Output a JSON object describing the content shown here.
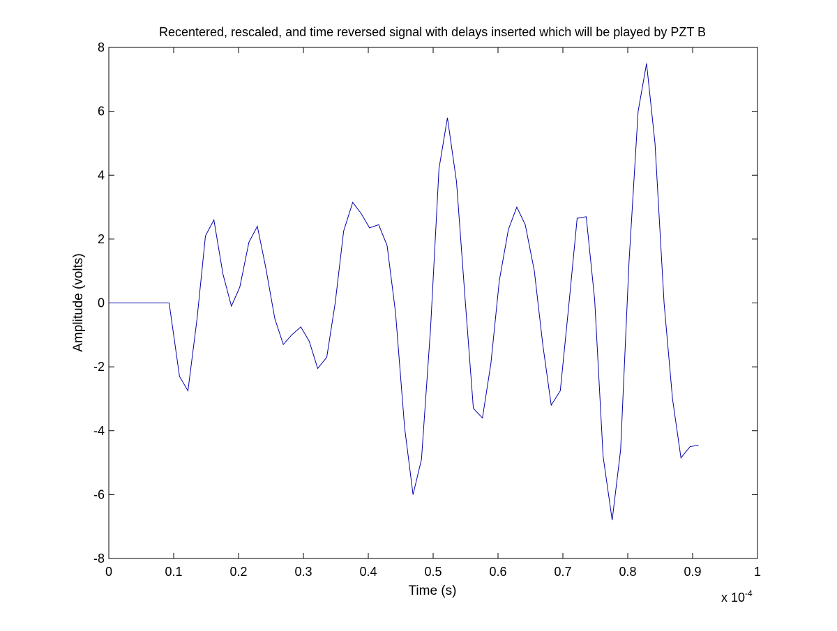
{
  "chart_data": {
    "type": "line",
    "title": "Recentered, rescaled, and time reversed signal with delays inserted which will be played by PZT B",
    "xlabel": "Time (s)",
    "ylabel": "Amplitude (volts)",
    "x_multiplier_base": "x 10",
    "x_multiplier_exponent": "-4",
    "xlim": [
      0,
      1
    ],
    "ylim": [
      -8,
      8
    ],
    "grid": false,
    "xticks": [
      0,
      0.1,
      0.2,
      0.3,
      0.4,
      0.5,
      0.6,
      0.7,
      0.8,
      0.9,
      1
    ],
    "xtick_labels": [
      "0",
      "0.1",
      "0.2",
      "0.3",
      "0.4",
      "0.5",
      "0.6",
      "0.7",
      "0.8",
      "0.9",
      "1"
    ],
    "yticks": [
      -8,
      -6,
      -4,
      -2,
      0,
      2,
      4,
      6,
      8
    ],
    "ytick_labels": [
      "-8",
      "-6",
      "-4",
      "-2",
      "0",
      "2",
      "4",
      "6",
      "8"
    ],
    "series": [
      {
        "color": "#0000aa",
        "x": [
          0,
          0.093,
          0.109,
          0.122,
          0.136,
          0.149,
          0.162,
          0.176,
          0.189,
          0.202,
          0.216,
          0.229,
          0.242,
          0.256,
          0.269,
          0.282,
          0.296,
          0.309,
          0.322,
          0.336,
          0.349,
          0.362,
          0.376,
          0.389,
          0.402,
          0.416,
          0.429,
          0.442,
          0.456,
          0.469,
          0.482,
          0.496,
          0.509,
          0.522,
          0.536,
          0.549,
          0.562,
          0.576,
          0.589,
          0.602,
          0.616,
          0.629,
          0.642,
          0.656,
          0.669,
          0.682,
          0.696,
          0.709,
          0.722,
          0.736,
          0.749,
          0.762,
          0.776,
          0.789,
          0.802,
          0.816,
          0.829,
          0.842,
          0.856,
          0.869,
          0.882,
          0.896,
          0.909
        ],
        "y": [
          0,
          0,
          -2.3,
          -2.75,
          -0.5,
          2.1,
          2.6,
          0.9,
          -0.1,
          0.5,
          1.9,
          2.4,
          1.1,
          -0.5,
          -1.3,
          -1.0,
          -0.75,
          -1.2,
          -2.05,
          -1.7,
          0.0,
          2.25,
          3.15,
          2.8,
          2.35,
          2.45,
          1.8,
          -0.3,
          -3.9,
          -6.0,
          -4.9,
          -0.8,
          4.2,
          5.8,
          3.8,
          0.2,
          -3.3,
          -3.6,
          -1.9,
          0.7,
          2.3,
          3.0,
          2.45,
          1.0,
          -1.3,
          -3.2,
          -2.75,
          -0.1,
          2.65,
          2.7,
          0.1,
          -4.8,
          -6.8,
          -4.6,
          1.3,
          6.0,
          7.5,
          5.0,
          0.0,
          -3.0,
          -4.85,
          -4.5,
          -4.45
        ]
      }
    ]
  }
}
